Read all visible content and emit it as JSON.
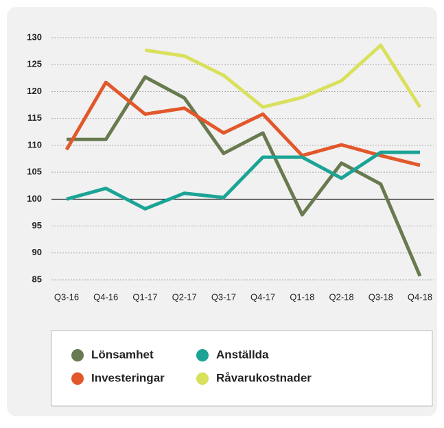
{
  "chart_data": {
    "type": "line",
    "categories": [
      "Q3-16",
      "Q4-16",
      "Q1-17",
      "Q2-17",
      "Q3-17",
      "Q4-17",
      "Q1-18",
      "Q2-18",
      "Q3-18",
      "Q4-18"
    ],
    "series": [
      {
        "name": "Lönsamhet",
        "color": "#687a4f",
        "values": [
          111.1,
          111.1,
          122.7,
          118.8,
          108.5,
          112.3,
          97.1,
          106.7,
          102.8,
          85.7
        ]
      },
      {
        "name": "Investeringar",
        "color": "#e2582b",
        "values": [
          109.2,
          121.7,
          115.8,
          116.9,
          112.3,
          115.8,
          108.1,
          110.1,
          108.1,
          106.3
        ]
      },
      {
        "name": "Anställda",
        "color": "#1ba496",
        "values": [
          100,
          102,
          98.2,
          101.1,
          100.3,
          107.8,
          107.8,
          103.9,
          108.7,
          108.7
        ]
      },
      {
        "name": "Råvarukostnader",
        "color": "#d9e05c",
        "values": [
          null,
          null,
          127.7,
          126.6,
          123,
          117.1,
          118.9,
          122,
          128.6,
          117.1
        ]
      }
    ],
    "ylim": [
      85,
      130
    ],
    "yticks": [
      85,
      90,
      95,
      100,
      105,
      110,
      115,
      120,
      125,
      130
    ],
    "grid": true,
    "baseline": 100
  }
}
